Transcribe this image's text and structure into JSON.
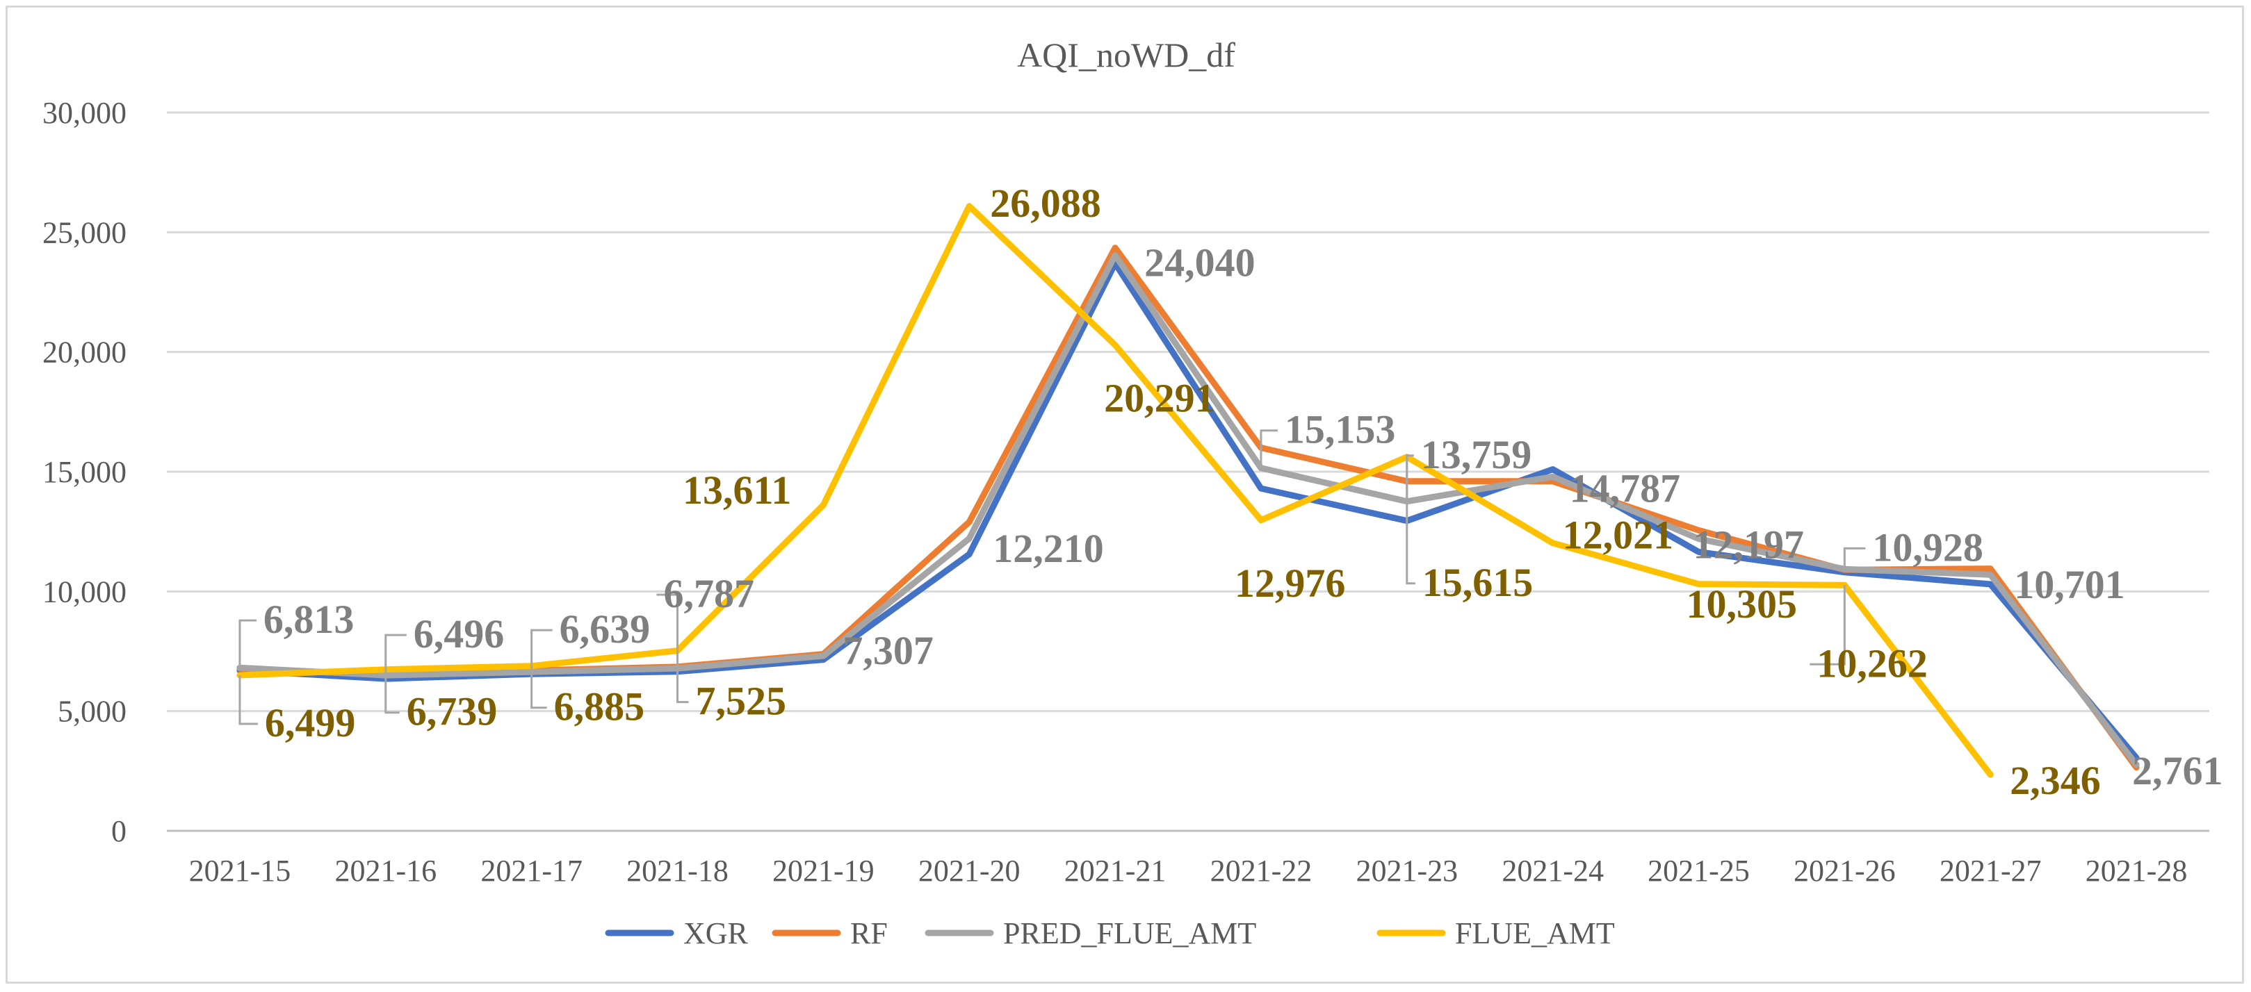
{
  "chart_data": {
    "type": "line",
    "title": "AQI_noWD_df",
    "xlabel": "",
    "ylabel": "",
    "ylim": [
      0,
      30000
    ],
    "yticks": [
      0,
      5000,
      10000,
      15000,
      20000,
      25000,
      30000
    ],
    "ytick_labels": [
      "0",
      "5,000",
      "10,000",
      "15,000",
      "20,000",
      "25,000",
      "30,000"
    ],
    "grid": true,
    "legend_position": "bottom",
    "categories": [
      "2021-15",
      "2021-16",
      "2021-17",
      "2021-18",
      "2021-19",
      "2021-20",
      "2021-21",
      "2021-22",
      "2021-23",
      "2021-24",
      "2021-25",
      "2021-26",
      "2021-27",
      "2021-28"
    ],
    "series": [
      {
        "name": "XGR",
        "color": "#4472c4",
        "values": [
          6700,
          6350,
          6550,
          6650,
          7150,
          11550,
          23700,
          14300,
          12950,
          15100,
          11650,
          10800,
          10300,
          3050
        ]
      },
      {
        "name": "RF",
        "color": "#ed7d31",
        "values": [
          6780,
          6520,
          6700,
          6850,
          7380,
          12900,
          24350,
          16000,
          14600,
          14600,
          12550,
          10900,
          10950,
          2650
        ]
      },
      {
        "name": "PRED_FLUE_AMT",
        "color": "#a5a5a5",
        "values": [
          6813,
          6496,
          6639,
          6787,
          7307,
          12210,
          24040,
          15153,
          13759,
          14787,
          12197,
          10928,
          10701,
          2761
        ]
      },
      {
        "name": "FLUE_AMT",
        "color": "#ffc000",
        "values": [
          6499,
          6739,
          6885,
          7525,
          13611,
          26088,
          20291,
          12976,
          15615,
          12021,
          10305,
          10262,
          2346,
          null
        ]
      }
    ],
    "data_labels": {
      "PRED_FLUE_AMT": [
        "6,813",
        "6,496",
        "6,639",
        "6,787",
        "7,307",
        "12,210",
        "24,040",
        "15,153",
        "13,759",
        "14,787",
        "12,197",
        "10,928",
        "10,701",
        "2,761"
      ],
      "FLUE_AMT": [
        "6,499",
        "6,739",
        "6,885",
        "7,525",
        "13,611",
        "26,088",
        "20,291",
        "12,976",
        "15,615",
        "12,021",
        "10,305",
        "10,262",
        "2,346"
      ]
    }
  }
}
